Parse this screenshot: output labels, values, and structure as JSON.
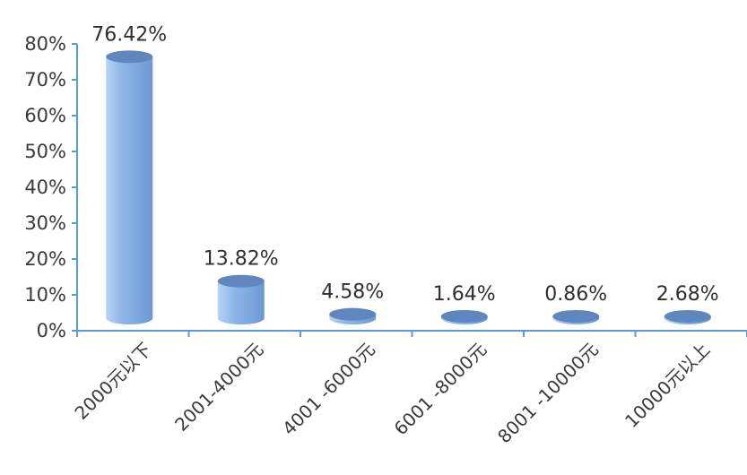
{
  "chart_data": {
    "type": "bar",
    "title": "",
    "xlabel": "",
    "ylabel": "",
    "categories": [
      "2000元以下",
      "2001-4000元",
      "4001 -6000元",
      "6001 -8000元",
      "8001 -10000元",
      "10000元以上"
    ],
    "values": [
      76.42,
      13.82,
      4.58,
      1.64,
      0.86,
      2.68
    ],
    "value_labels": [
      "76.42%",
      "13.82%",
      "4.58%",
      "1.64%",
      "0.86%",
      "2.68%"
    ],
    "ylim": [
      0,
      80
    ],
    "yticks": [
      0,
      10,
      20,
      30,
      40,
      50,
      60,
      70,
      80
    ],
    "ytick_labels": [
      "0%",
      "10%",
      "20%",
      "30%",
      "40%",
      "50%",
      "60%",
      "70%",
      "80%"
    ],
    "grid": false,
    "legend": "none",
    "style": "3d-cylinder",
    "colors": {
      "bar_light": "#b7d3f5",
      "bar_mid": "#8fb6e8",
      "bar_dark": "#6c98d2",
      "bar_top": "#5f86bf",
      "axis": "#5b9bd5"
    }
  }
}
